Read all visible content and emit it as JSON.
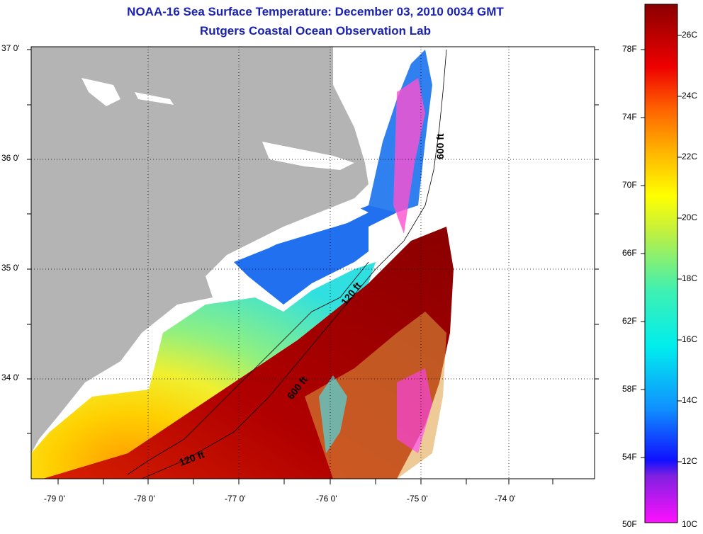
{
  "title": "NOAA-16 Sea Surface Temperature:  December 03, 2010 0034 GMT",
  "subtitle": "Rutgers Coastal Ocean Observation Lab",
  "lat_ticks": [
    "37 0'",
    "36 0'",
    "35 0'",
    "34 0'"
  ],
  "lon_ticks": [
    "-79 0'",
    "-78 0'",
    "-77 0'",
    "-76 0'",
    "-75 0'",
    "-74 0'"
  ],
  "contour_labels": {
    "north_600": "600 ft",
    "mid_600": "600 ft",
    "mid_120": "120 ft",
    "south_120": "120 ft"
  },
  "colorbar": {
    "fahrenheit": [
      "78F",
      "74F",
      "70F",
      "66F",
      "62F",
      "58F",
      "54F",
      "50F"
    ],
    "celsius": [
      "26C",
      "24C",
      "22C",
      "20C",
      "18C",
      "16C",
      "14C",
      "12C",
      "10C"
    ]
  },
  "colors": {
    "title": "#1a22b0",
    "land": "#b4b4b4",
    "no_data": "#ffffff"
  }
}
